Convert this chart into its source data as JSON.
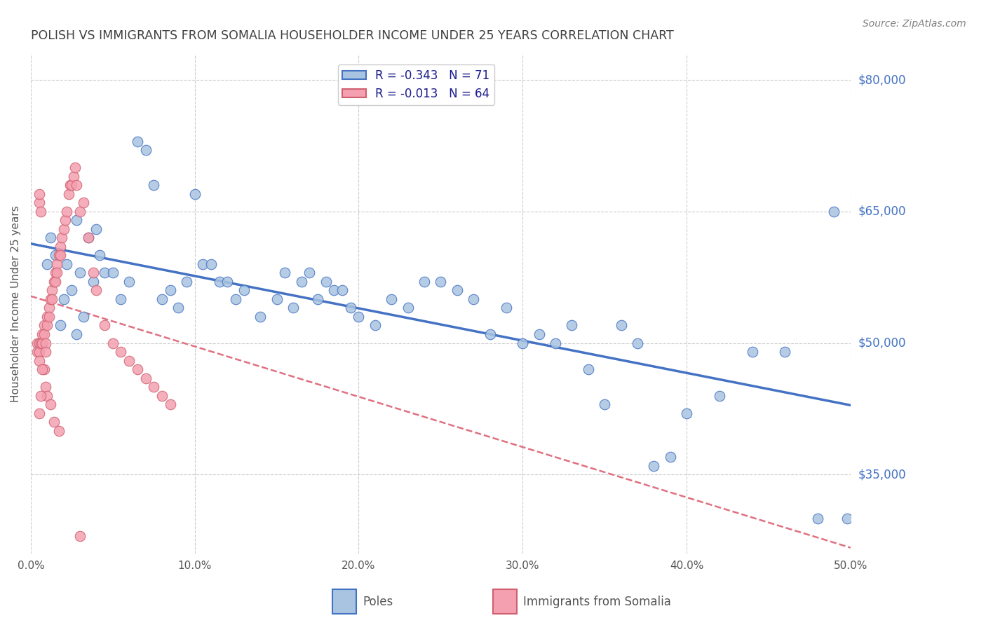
{
  "title": "POLISH VS IMMIGRANTS FROM SOMALIA HOUSEHOLDER INCOME UNDER 25 YEARS CORRELATION CHART",
  "source": "Source: ZipAtlas.com",
  "ylabel": "Householder Income Under 25 years",
  "legend_label1": "Poles",
  "legend_label2": "Immigrants from Somalia",
  "r1": -0.343,
  "n1": 71,
  "r2": -0.013,
  "n2": 64,
  "right_yticks": [
    80000,
    65000,
    50000,
    35000
  ],
  "right_ytick_labels": [
    "$80,000",
    "$65,000",
    "$50,000",
    "$35,000"
  ],
  "color_blue": "#a8c4e0",
  "color_pink": "#f4a0b0",
  "trendline_blue": "#4472c4",
  "trendline_pink": "#e07080",
  "title_color": "#404040",
  "source_color": "#808080",
  "right_label_color": "#4472c4",
  "legend_text_color": "#1a1a8c",
  "xmin": 0.0,
  "xmax": 0.5,
  "ymin": 26000,
  "ymax": 83000,
  "blue_x": [
    0.01,
    0.012,
    0.015,
    0.018,
    0.02,
    0.022,
    0.025,
    0.028,
    0.028,
    0.03,
    0.032,
    0.035,
    0.038,
    0.04,
    0.042,
    0.045,
    0.05,
    0.055,
    0.06,
    0.065,
    0.07,
    0.075,
    0.08,
    0.085,
    0.09,
    0.095,
    0.1,
    0.105,
    0.11,
    0.115,
    0.12,
    0.125,
    0.13,
    0.14,
    0.15,
    0.155,
    0.16,
    0.165,
    0.17,
    0.175,
    0.18,
    0.185,
    0.19,
    0.195,
    0.2,
    0.21,
    0.22,
    0.23,
    0.24,
    0.25,
    0.26,
    0.27,
    0.28,
    0.29,
    0.3,
    0.31,
    0.32,
    0.33,
    0.34,
    0.35,
    0.36,
    0.37,
    0.38,
    0.39,
    0.4,
    0.42,
    0.44,
    0.46,
    0.48,
    0.49,
    0.498
  ],
  "blue_y": [
    59000,
    62000,
    60000,
    52000,
    55000,
    59000,
    56000,
    64000,
    51000,
    58000,
    53000,
    62000,
    57000,
    63000,
    60000,
    58000,
    58000,
    55000,
    57000,
    73000,
    72000,
    68000,
    55000,
    56000,
    54000,
    57000,
    67000,
    59000,
    59000,
    57000,
    57000,
    55000,
    56000,
    53000,
    55000,
    58000,
    54000,
    57000,
    58000,
    55000,
    57000,
    56000,
    56000,
    54000,
    53000,
    52000,
    55000,
    54000,
    57000,
    57000,
    56000,
    55000,
    51000,
    54000,
    50000,
    51000,
    50000,
    52000,
    47000,
    43000,
    52000,
    50000,
    36000,
    37000,
    42000,
    44000,
    49000,
    49000,
    30000,
    65000,
    30000
  ],
  "pink_x": [
    0.004,
    0.004,
    0.005,
    0.005,
    0.005,
    0.005,
    0.005,
    0.006,
    0.006,
    0.007,
    0.007,
    0.008,
    0.008,
    0.008,
    0.009,
    0.009,
    0.009,
    0.01,
    0.01,
    0.01,
    0.011,
    0.011,
    0.012,
    0.012,
    0.013,
    0.013,
    0.014,
    0.014,
    0.015,
    0.015,
    0.016,
    0.016,
    0.017,
    0.017,
    0.018,
    0.018,
    0.019,
    0.02,
    0.021,
    0.022,
    0.023,
    0.024,
    0.025,
    0.026,
    0.027,
    0.028,
    0.03,
    0.032,
    0.035,
    0.038,
    0.04,
    0.045,
    0.05,
    0.055,
    0.06,
    0.065,
    0.07,
    0.075,
    0.08,
    0.085,
    0.005,
    0.006,
    0.007,
    0.03
  ],
  "pink_y": [
    50000,
    49000,
    66000,
    67000,
    50000,
    49000,
    48000,
    65000,
    50000,
    51000,
    50000,
    52000,
    51000,
    47000,
    50000,
    49000,
    45000,
    53000,
    52000,
    44000,
    54000,
    53000,
    55000,
    43000,
    56000,
    55000,
    57000,
    41000,
    58000,
    57000,
    59000,
    58000,
    60000,
    40000,
    61000,
    60000,
    62000,
    63000,
    64000,
    65000,
    67000,
    68000,
    68000,
    69000,
    70000,
    68000,
    65000,
    66000,
    62000,
    58000,
    56000,
    52000,
    50000,
    49000,
    48000,
    47000,
    46000,
    45000,
    44000,
    43000,
    42000,
    44000,
    47000,
    28000
  ]
}
